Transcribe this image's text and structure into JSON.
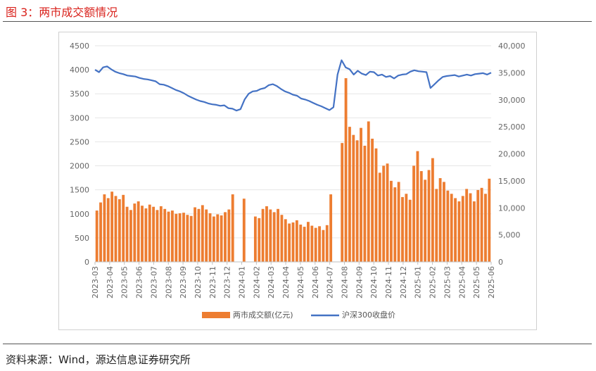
{
  "figure": {
    "title": "图 3：两市成交额情况",
    "source": "资料来源：Wind，源达信息证券研究所"
  },
  "chart_data": {
    "type": "bar",
    "left_axis": {
      "ticks": [
        "0",
        "500",
        "1000",
        "1500",
        "2000",
        "2500",
        "3000",
        "3500",
        "4000",
        "4500"
      ],
      "min": 0,
      "max": 4500
    },
    "right_axis": {
      "ticks": [
        "0",
        "5,000",
        "10,000",
        "15,000",
        "20,000",
        "25,000",
        "30,000",
        "35,000",
        "40,000"
      ],
      "min": 0,
      "max": 40000
    },
    "x_labels": [
      "2023-03",
      "2023-04",
      "2023-05",
      "2023-06",
      "2023-07",
      "2023-08",
      "2023-09",
      "2023-10",
      "2023-11",
      "2023-12",
      "2024-01",
      "2024-02",
      "2024-03",
      "2024-04",
      "2024-05",
      "2024-06",
      "2024-07",
      "2024-08",
      "2024-09",
      "2024-10",
      "2024-11",
      "2024-12",
      "2025-01",
      "2025-02",
      "2025-03",
      "2025-04",
      "2025-05",
      "2025-06"
    ],
    "series": [
      {
        "name": "两市成交额(亿元)",
        "type": "bar",
        "axis": "right",
        "color": "#ED7D31",
        "values": [
          9500,
          11000,
          12500,
          11800,
          13000,
          12200,
          11600,
          12400,
          10200,
          9600,
          10800,
          11200,
          10400,
          9900,
          10600,
          10200,
          9600,
          10300,
          9800,
          9300,
          9500,
          8900,
          9000,
          9100,
          8700,
          8500,
          10100,
          9800,
          10500,
          9700,
          9000,
          8400,
          8800,
          8600,
          9200,
          9700,
          12500,
          11700,
          8400,
          8100,
          9800,
          10300,
          9700,
          9200,
          9800,
          8700,
          7900,
          7100,
          7300,
          7700,
          6900,
          6500,
          7400,
          6700,
          6300,
          6600,
          5900,
          6800,
          12500,
          22000,
          34000,
          25000,
          23500,
          22500,
          24800,
          21500,
          26000,
          22800,
          21000,
          16500,
          17800,
          18200,
          15000,
          13800,
          14800,
          12000,
          12600,
          11500,
          17800,
          20500,
          16800,
          15200,
          17000,
          19200,
          13500,
          15500,
          14800,
          13200,
          12600,
          11800,
          11200,
          12200,
          13500,
          12700,
          11200,
          13300,
          13700,
          12600,
          15400
        ],
        "gap_after_index": [
          36,
          37,
          58
        ]
      },
      {
        "name": "沪深300收盘价",
        "type": "line",
        "axis": "left",
        "color": "#4472C4",
        "values": [
          4000,
          3950,
          4050,
          4070,
          4010,
          3960,
          3930,
          3910,
          3880,
          3870,
          3860,
          3830,
          3810,
          3800,
          3780,
          3760,
          3700,
          3690,
          3660,
          3620,
          3580,
          3550,
          3510,
          3460,
          3420,
          3380,
          3350,
          3330,
          3300,
          3280,
          3270,
          3250,
          3260,
          3200,
          3190,
          3150,
          3180,
          3380,
          3500,
          3550,
          3560,
          3600,
          3620,
          3680,
          3700,
          3660,
          3600,
          3550,
          3520,
          3480,
          3460,
          3400,
          3380,
          3350,
          3310,
          3270,
          3240,
          3200,
          3160,
          3220,
          3900,
          4200,
          4050,
          4010,
          3900,
          3980,
          3920,
          3890,
          3960,
          3950,
          3880,
          3900,
          3850,
          3870,
          3820,
          3880,
          3900,
          3910,
          3960,
          3990,
          3970,
          3960,
          3950,
          3620,
          3700,
          3780,
          3850,
          3870,
          3880,
          3890,
          3860,
          3880,
          3900,
          3880,
          3910,
          3920,
          3930,
          3900,
          3940
        ]
      }
    ],
    "legend": {
      "items": [
        "两市成交额(亿元)",
        "沪深300收盘价"
      ],
      "placement": "bottom"
    }
  }
}
